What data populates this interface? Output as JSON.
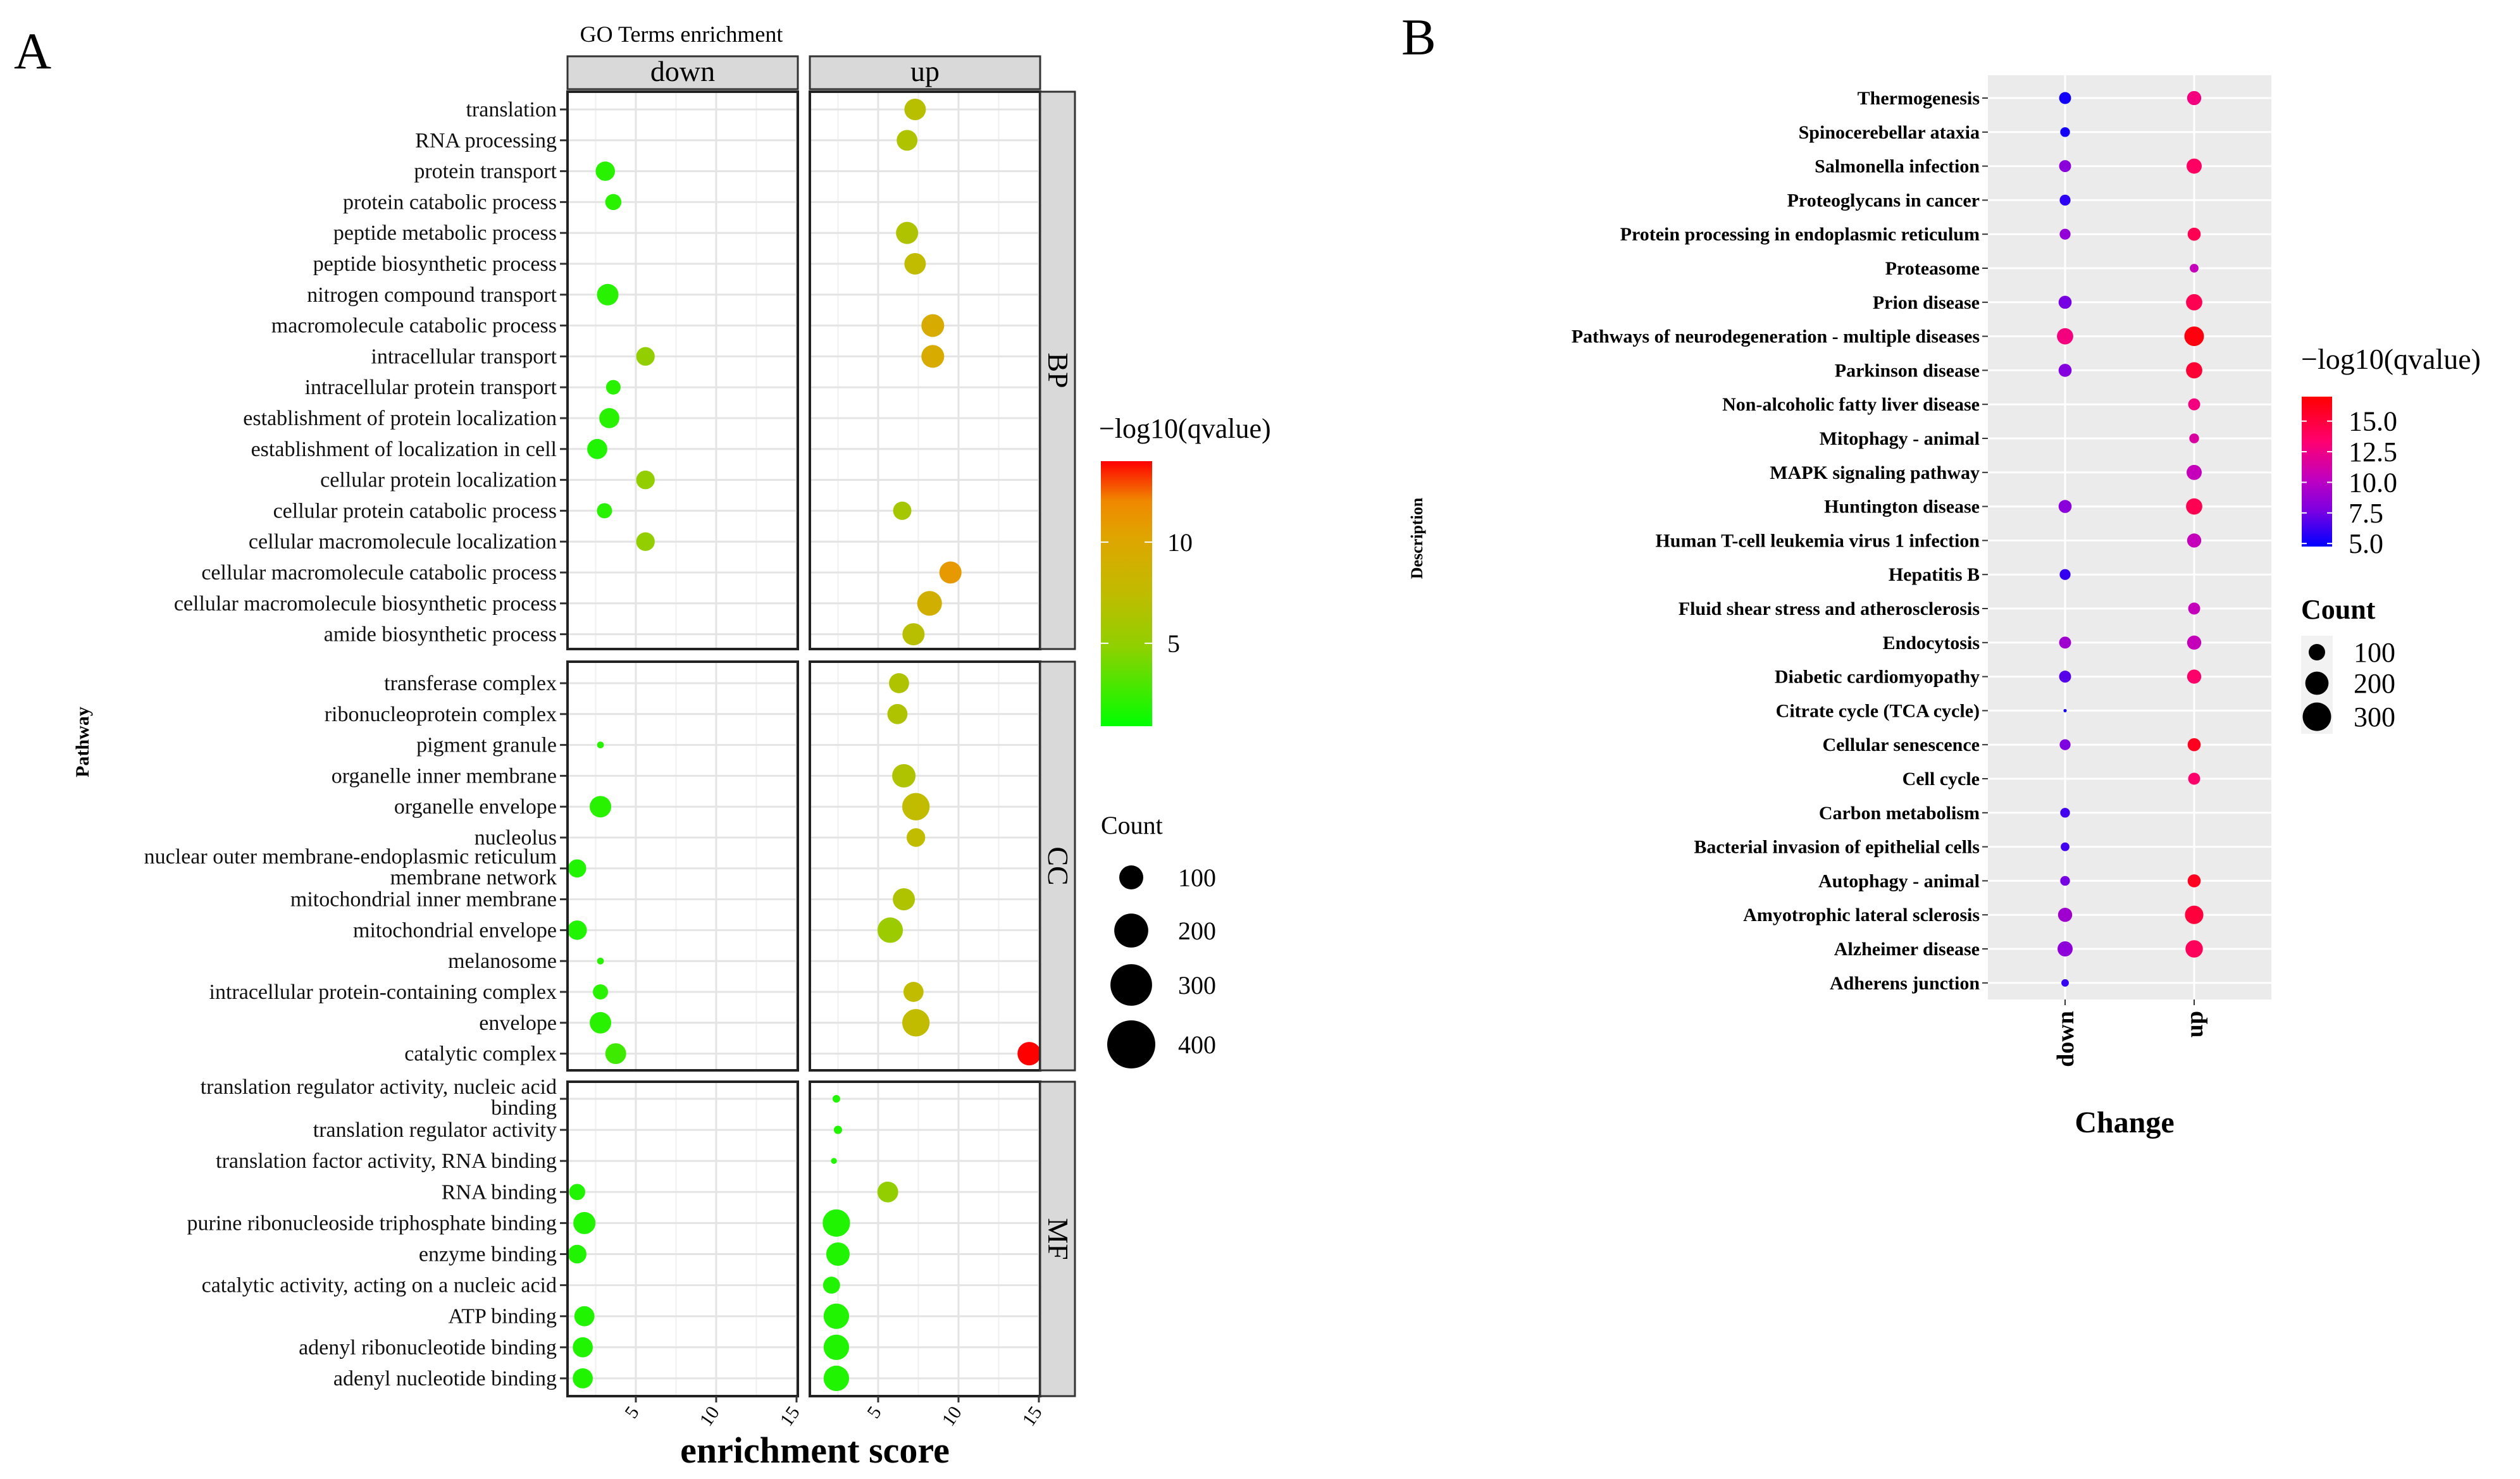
{
  "panel_labels": {
    "a": "A",
    "b": "B"
  },
  "chart_data": [
    {
      "type": "scatter",
      "id": "go",
      "title": "GO Terms enrichment",
      "xlabel": "enrichment score",
      "ylabel": "Pathway",
      "xlim": [
        0.75,
        15.08
      ],
      "xticks": [
        5,
        10,
        15
      ],
      "xtick_labels": [
        "5",
        "10",
        "15"
      ],
      "grid": true,
      "columns": [
        "down",
        "up"
      ],
      "color_legend": {
        "title": "−log10(qvalue)",
        "range": [
          0.9,
          14
        ],
        "ticks": [
          5,
          10
        ],
        "tick_labels": [
          "5",
          "10"
        ],
        "low_color": "#00ff00",
        "high_color": "#ff0000"
      },
      "size_legend": {
        "title": "Count",
        "values": [
          100,
          200,
          300,
          400
        ],
        "labels": [
          "100",
          "200",
          "300",
          "400"
        ]
      },
      "legend_placement": "right",
      "point_fields": [
        "enrichment_score",
        "neg_log10_qvalue",
        "count"
      ],
      "facets": [
        {
          "name": "BP",
          "terms": [
            "translation",
            "RNA processing",
            "protein transport",
            "protein catabolic process",
            "peptide metabolic process",
            "peptide biosynthetic process",
            "nitrogen compound transport",
            "macromolecule catabolic process",
            "intracellular transport",
            "intracellular protein transport",
            "establishment of protein localization",
            "establishment of localization in cell",
            "cellular protein localization",
            "cellular protein catabolic process",
            "cellular macromolecule localization",
            "cellular macromolecule catabolic process",
            "cellular macromolecule biosynthetic process",
            "amide biosynthetic process"
          ],
          "down": [
            null,
            null,
            [
              3.1,
              2,
              65
            ],
            [
              3.6,
              2,
              45
            ],
            null,
            null,
            [
              3.25,
              2,
              80
            ],
            null,
            [
              5.6,
              5,
              60
            ],
            [
              3.6,
              2,
              37
            ],
            [
              3.35,
              2,
              70
            ],
            [
              2.6,
              1.8,
              70
            ],
            [
              5.6,
              5,
              60
            ],
            [
              3.05,
              2,
              40
            ],
            [
              5.6,
              5,
              60
            ],
            null,
            null,
            null
          ],
          "up": [
            [
              7.3,
              7,
              80
            ],
            [
              6.8,
              6.5,
              75
            ],
            null,
            null,
            [
              6.8,
              6.5,
              85
            ],
            [
              7.3,
              7.5,
              80
            ],
            null,
            [
              8.4,
              9.5,
              90
            ],
            [
              8.4,
              9.5,
              90
            ],
            null,
            null,
            null,
            null,
            [
              6.5,
              6,
              58
            ],
            null,
            [
              9.5,
              11,
              85
            ],
            [
              8.2,
              9,
              106
            ],
            [
              7.2,
              7,
              85
            ]
          ]
        },
        {
          "name": "CC",
          "terms": [
            "transferase complex",
            "ribonucleoprotein complex",
            "pigment granule",
            "organelle inner membrane",
            "organelle envelope",
            "nucleolus",
            "nuclear outer membrane-endoplasmic reticulum membrane network",
            "mitochondrial inner membrane",
            "mitochondrial envelope",
            "melanosome",
            "intracellular protein-containing complex",
            "envelope",
            "catalytic complex"
          ],
          "down": [
            null,
            null,
            [
              2.8,
              2,
              8
            ],
            null,
            [
              2.8,
              2,
              80
            ],
            null,
            [
              1.35,
              1.8,
              57
            ],
            null,
            [
              1.35,
              1.8,
              65
            ],
            [
              2.8,
              2,
              8
            ],
            [
              2.8,
              2,
              40
            ],
            [
              2.8,
              2,
              80
            ],
            [
              3.75,
              2.6,
              75
            ]
          ],
          "up": [
            [
              6.3,
              6.5,
              70
            ],
            [
              6.2,
              6.5,
              70
            ],
            null,
            [
              6.6,
              6.5,
              95
            ],
            [
              7.35,
              7.5,
              130
            ],
            [
              7.35,
              7.5,
              60
            ],
            null,
            [
              6.6,
              6.5,
              85
            ],
            [
              5.75,
              5.5,
              112
            ],
            null,
            [
              7.2,
              7.5,
              70
            ],
            [
              7.35,
              7.5,
              130
            ],
            [
              14.4,
              14,
              95
            ]
          ]
        },
        {
          "name": "MF",
          "terms": [
            "translation regulator activity, nucleic acid binding",
            "translation regulator activity",
            "translation factor activity, RNA binding",
            "RNA binding",
            "purine ribonucleoside triphosphate binding",
            "enzyme binding",
            "catalytic activity, acting on a nucleic acid",
            "ATP binding",
            "adenyl ribonucleotide binding",
            "adenyl nucleotide binding"
          ],
          "down": [
            null,
            null,
            null,
            [
              1.35,
              1.8,
              45
            ],
            [
              1.8,
              1.8,
              85
            ],
            [
              1.35,
              1.8,
              60
            ],
            null,
            [
              1.8,
              1.8,
              70
            ],
            [
              1.7,
              1.8,
              70
            ],
            [
              1.7,
              1.8,
              70
            ]
          ],
          "up": [
            [
              2.4,
              1.8,
              10
            ],
            [
              2.5,
              1.8,
              12
            ],
            [
              2.25,
              1.8,
              6
            ],
            [
              5.6,
              5,
              75
            ],
            [
              2.4,
              1.8,
              130
            ],
            [
              2.5,
              1.8,
              95
            ],
            [
              2.1,
              1.8,
              50
            ],
            [
              2.4,
              1.8,
              112
            ],
            [
              2.4,
              1.8,
              112
            ],
            [
              2.4,
              1.8,
              112
            ]
          ]
        }
      ]
    },
    {
      "type": "scatter",
      "id": "kegg",
      "xlabel": "Change",
      "ylabel": "Description",
      "categories": [
        "down",
        "up"
      ],
      "grid": true,
      "color_legend": {
        "title": "−log10(qvalue)",
        "range": [
          4.75,
          17
        ],
        "ticks": [
          15,
          12.5,
          10,
          7.5,
          5
        ],
        "tick_labels": [
          "15.0",
          "12.5",
          "10.0",
          "7.5",
          "5.0"
        ],
        "low_color": "#0000ff",
        "high_color": "#ff0000"
      },
      "size_legend": {
        "title": "Count",
        "values": [
          100,
          200,
          300
        ],
        "labels": [
          "100",
          "200",
          "300"
        ]
      },
      "legend_placement": "right",
      "point_fields": [
        "neg_log10_qvalue",
        "count"
      ],
      "terms": [
        "Thermogenesis",
        "Spinocerebellar ataxia",
        "Salmonella infection",
        "Proteoglycans in cancer",
        "Protein processing in endoplasmic reticulum",
        "Proteasome",
        "Prion disease",
        "Pathways of neurodegeneration - multiple diseases",
        "Parkinson disease",
        "Non-alcoholic fatty liver disease",
        "Mitophagy - animal",
        "MAPK signaling pathway",
        "Huntington disease",
        "Human T-cell leukemia virus 1 infection",
        "Hepatitis B",
        "Fluid shear stress and atherosclerosis",
        "Endocytosis",
        "Diabetic cardiomyopathy",
        "Citrate cycle (TCA cycle)",
        "Cellular senescence",
        "Cell cycle",
        "Carbon metabolism",
        "Bacterial invasion of epithelial cells",
        "Autophagy - animal",
        "Amyotrophic lateral sclerosis",
        "Alzheimer disease",
        "Adherens junction"
      ],
      "down": [
        [
          5.2,
          53
        ],
        [
          5.2,
          35
        ],
        [
          8.2,
          53
        ],
        [
          5.8,
          44
        ],
        [
          8.5,
          44
        ],
        null,
        [
          7.6,
          63
        ],
        [
          12.8,
          98
        ],
        [
          8,
          63
        ],
        null,
        null,
        null,
        [
          8.2,
          63
        ],
        null,
        [
          6,
          44
        ],
        null,
        [
          9,
          53
        ],
        [
          6.8,
          53
        ],
        [
          5.2,
          4
        ],
        [
          7.8,
          44
        ],
        null,
        [
          6.3,
          35
        ],
        [
          6.3,
          28
        ],
        [
          7.6,
          35
        ],
        [
          9,
          74
        ],
        [
          8.3,
          85
        ],
        [
          6,
          21
        ]
      ],
      "up": [
        [
          12.8,
          74
        ],
        null,
        [
          13.8,
          85
        ],
        null,
        [
          14.3,
          63
        ],
        [
          10.5,
          28
        ],
        [
          14.3,
          98
        ],
        [
          16.5,
          142
        ],
        [
          15.3,
          98
        ],
        [
          12.8,
          53
        ],
        [
          11.5,
          35
        ],
        [
          10.5,
          85
        ],
        [
          14.3,
          98
        ],
        [
          10.5,
          74
        ],
        null,
        [
          10.5,
          53
        ],
        [
          10.5,
          74
        ],
        [
          13.5,
          74
        ],
        null,
        [
          16,
          63
        ],
        [
          13.5,
          53
        ],
        null,
        null,
        [
          16,
          63
        ],
        [
          15,
          126
        ],
        [
          14,
          112
        ],
        null
      ]
    }
  ]
}
